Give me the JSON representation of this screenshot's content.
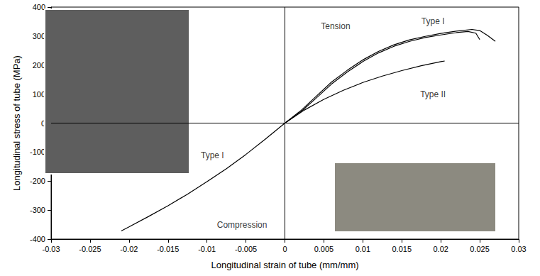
{
  "chart_data": {
    "type": "line",
    "x_label": "Longitudinal strain of tube (mm/mm)",
    "y_label": "Longitudinal stress of tube (MPa)",
    "xlim": [
      -0.03,
      0.03
    ],
    "xticks": [
      -0.03,
      -0.025,
      -0.02,
      -0.015,
      -0.01,
      -0.005,
      0,
      0.005,
      0.01,
      0.015,
      0.02,
      0.025,
      0.03
    ],
    "ylim": [
      -400,
      400
    ],
    "yticks": [
      -400,
      -300,
      -200,
      -100,
      0,
      100,
      200,
      300,
      400
    ],
    "grid": false,
    "series": [
      {
        "color": "#000000",
        "line_style": "solid",
        "x": [
          0,
          0.002,
          0.004,
          0.006,
          0.008,
          0.01,
          0.012,
          0.014,
          0.016,
          0.018,
          0.02,
          0.022,
          0.024,
          0.025,
          0.026,
          0.027
        ],
        "values": [
          0,
          42,
          92,
          142,
          182,
          218,
          247,
          270,
          287,
          299,
          309,
          317,
          323,
          319,
          302,
          282
        ]
      },
      {
        "color": "#000000",
        "line_style": "solid",
        "x": [
          0,
          0.002,
          0.004,
          0.006,
          0.008,
          0.01,
          0.012,
          0.014,
          0.016,
          0.018,
          0.02,
          0.022,
          0.0235,
          0.0245,
          0.025
        ],
        "values": [
          0,
          38,
          86,
          135,
          176,
          212,
          242,
          265,
          282,
          295,
          304,
          312,
          316,
          310,
          288
        ]
      },
      {
        "color": "#000000",
        "line_style": "solid",
        "x": [
          0,
          0.0025,
          0.005,
          0.0075,
          0.01,
          0.0125,
          0.015,
          0.0175,
          0.02,
          0.0205
        ],
        "values": [
          0,
          45,
          82,
          113,
          140,
          162,
          181,
          198,
          212,
          214
        ]
      },
      {
        "color": "#000000",
        "line_style": "solid",
        "x": [
          0,
          -0.0025,
          -0.005,
          -0.0075,
          -0.01,
          -0.0125,
          -0.015,
          -0.0175,
          -0.02,
          -0.021
        ],
        "values": [
          0,
          -55,
          -108,
          -157,
          -202,
          -245,
          -285,
          -322,
          -358,
          -372
        ]
      }
    ],
    "annotations": [
      {
        "text": "Tension",
        "x": 0.0065,
        "y": 335
      },
      {
        "text": "Type I",
        "x": 0.019,
        "y": 352
      },
      {
        "text": "Type II",
        "x": 0.019,
        "y": 100
      },
      {
        "text": "Type I",
        "x": -0.0093,
        "y": -112
      },
      {
        "text": "Compression",
        "x": -0.0055,
        "y": -350
      }
    ]
  }
}
